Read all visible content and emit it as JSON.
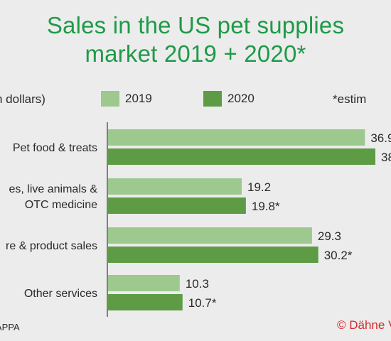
{
  "title_lines": [
    "Sales in the US pet supplies",
    "market 2019 + 2020*"
  ],
  "chart_data": {
    "type": "bar",
    "orientation": "horizontal",
    "title": "Sales in the US pet supplies market 2019 + 2020*",
    "ylabel": "n dollars)",
    "note": "*estim",
    "categories": [
      [
        "Pet food & treats"
      ],
      [
        "es, live animals &",
        "OTC medicine"
      ],
      [
        "re & product sales"
      ],
      [
        "Other services"
      ]
    ],
    "series": [
      {
        "name": "2019",
        "color": "#9dc98f",
        "values": [
          36.9,
          19.2,
          29.3,
          10.3
        ],
        "labels": [
          "36.9",
          "19.2",
          "29.3",
          "10.3"
        ]
      },
      {
        "name": "2020",
        "color": "#5e9b45",
        "values": [
          38.4,
          19.8,
          30.2,
          10.7
        ],
        "labels": [
          "38",
          "19.8*",
          "30.2*",
          "10.7*"
        ]
      }
    ],
    "xlim": [
      0,
      38.4
    ],
    "grid": false,
    "legend": "top"
  },
  "footer": {
    "source": "APPA",
    "credit": "© Dähne V"
  }
}
